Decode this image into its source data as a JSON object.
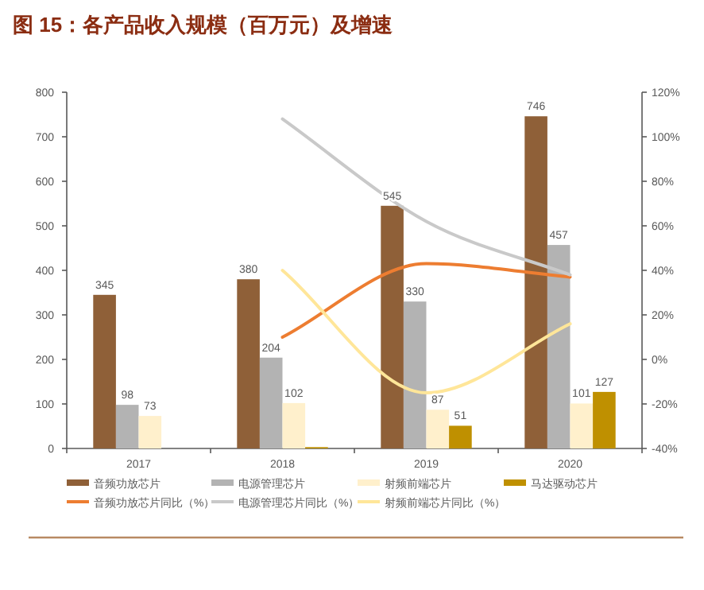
{
  "chart_data": {
    "type": "bar",
    "title": "图 15：各产品收入规模（百万元）及增速",
    "categories": [
      "2017",
      "2018",
      "2019",
      "2020"
    ],
    "ylim": [
      0,
      800
    ],
    "yticks": [
      0,
      100,
      200,
      300,
      400,
      500,
      600,
      700,
      800
    ],
    "y2lim": [
      -40,
      120
    ],
    "y2ticks": [
      {
        "value": -40,
        "label": "-40%"
      },
      {
        "value": -20,
        "label": "-20%"
      },
      {
        "value": 0,
        "label": "0%"
      },
      {
        "value": 20,
        "label": "20%"
      },
      {
        "value": 40,
        "label": "40%"
      },
      {
        "value": 60,
        "label": "60%"
      },
      {
        "value": 80,
        "label": "80%"
      },
      {
        "value": 100,
        "label": "100%"
      },
      {
        "value": 120,
        "label": "120%"
      }
    ],
    "legend": "bottom",
    "grid": false,
    "series": [
      {
        "name": "音频功放芯片",
        "color": "#8f6038",
        "values": [
          345,
          380,
          545,
          746
        ],
        "value_labels": [
          "345",
          "380",
          "545",
          "746"
        ]
      },
      {
        "name": "电源管理芯片",
        "color": "#b3b3b3",
        "values": [
          98,
          204,
          330,
          457
        ],
        "value_labels": [
          "98",
          "204",
          "330",
          "457"
        ]
      },
      {
        "name": "射频前端芯片",
        "color": "#fff0cc",
        "values": [
          73,
          102,
          87,
          101
        ],
        "value_labels": [
          "73",
          "102",
          "87",
          "101"
        ]
      },
      {
        "name": "马达驱动芯片",
        "color": "#bf9000",
        "values": [
          null,
          3,
          51,
          127
        ],
        "value_labels": [
          null,
          null,
          "51",
          "127"
        ]
      },
      {
        "name": "音频功放芯片同比（%）",
        "type": "line",
        "axis": "y2",
        "color": "#ed7d31",
        "values": [
          null,
          10,
          43,
          37
        ]
      },
      {
        "name": "电源管理芯片同比（%）",
        "type": "line",
        "axis": "y2",
        "color": "#c9c9c9",
        "values": [
          null,
          108,
          62,
          38
        ]
      },
      {
        "name": "射频前端芯片同比（%）",
        "type": "line",
        "axis": "y2",
        "color": "#ffe699",
        "values": [
          null,
          40,
          -15,
          16
        ]
      }
    ]
  }
}
